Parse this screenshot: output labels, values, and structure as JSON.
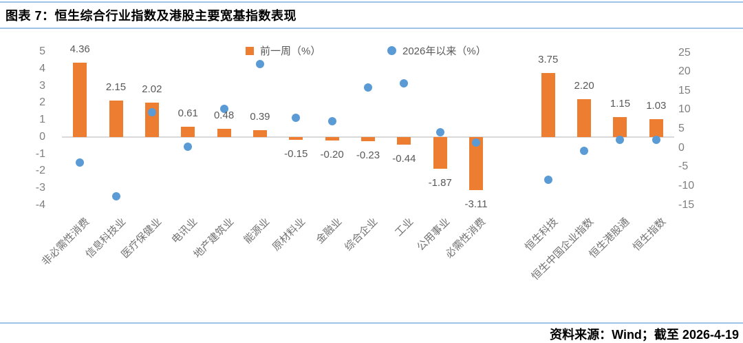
{
  "header": {
    "title": "图表 7：恒生综合行业指数及港股主要宽基指数表现"
  },
  "footer": {
    "source": "资料来源：Wind；截至 2026-4-19"
  },
  "colors": {
    "bar": "#ED7D31",
    "dot": "#5B9BD5",
    "accent_line": "#9DC3E6",
    "zero_line": "#D9D9D9",
    "axis_text": "#7F7F7F",
    "label_text": "#595959",
    "category_text": "#737373",
    "title_text": "#000000"
  },
  "chart_data": {
    "type": "bar+scatter",
    "title": "恒生综合行业指数及港股主要宽基指数表现",
    "legend": [
      {
        "label": "前一周（%）",
        "marker": "square",
        "color": "#ED7D31"
      },
      {
        "label": "2026年以来（%）",
        "marker": "circle",
        "color": "#5B9BD5"
      }
    ],
    "left_axis": {
      "min": -4,
      "max": 5,
      "ticks": [
        5,
        4,
        3,
        2,
        1,
        0,
        -1,
        -2,
        -3,
        -4
      ]
    },
    "right_axis": {
      "min": -15,
      "max": 25,
      "ticks": [
        25,
        20,
        15,
        10,
        5,
        0,
        -5,
        -10,
        -15
      ]
    },
    "total_slots": 17,
    "gap_slot": 12,
    "series": [
      {
        "name": "前一周（%）",
        "type": "bar",
        "axis": "left"
      },
      {
        "name": "2026年以来（%）",
        "type": "scatter",
        "axis": "right"
      }
    ],
    "points": [
      {
        "slot": 0,
        "category": "非必需性消费",
        "bar": 4.36,
        "bar_label": "4.36",
        "dot": -3.9
      },
      {
        "slot": 1,
        "category": "信息科技业",
        "bar": 2.15,
        "bar_label": "2.15",
        "dot": -12.6
      },
      {
        "slot": 2,
        "category": "医疗保健业",
        "bar": 2.02,
        "bar_label": "2.02",
        "dot": 9.4
      },
      {
        "slot": 3,
        "category": "电讯业",
        "bar": 0.61,
        "bar_label": "0.61",
        "dot": 0.4
      },
      {
        "slot": 4,
        "category": "地产建筑业",
        "bar": 0.48,
        "bar_label": "0.48",
        "dot": 10.3
      },
      {
        "slot": 5,
        "category": "能源业",
        "bar": 0.39,
        "bar_label": "0.39",
        "dot": 22.0
      },
      {
        "slot": 6,
        "category": "原材料业",
        "bar": -0.15,
        "bar_label": "-0.15",
        "dot": 7.9
      },
      {
        "slot": 7,
        "category": "金融业",
        "bar": -0.2,
        "bar_label": "-0.20",
        "dot": 7.0
      },
      {
        "slot": 8,
        "category": "综合企业",
        "bar": -0.23,
        "bar_label": "-0.23",
        "dot": 15.9
      },
      {
        "slot": 9,
        "category": "工业",
        "bar": -0.44,
        "bar_label": "-0.44",
        "dot": 17.0
      },
      {
        "slot": 10,
        "category": "公用事业",
        "bar": -1.87,
        "bar_label": "-1.87",
        "dot": 4.2
      },
      {
        "slot": 11,
        "category": "必需性消费",
        "bar": -3.11,
        "bar_label": "-3.11",
        "dot": 1.4
      },
      {
        "slot": 13,
        "category": "恒生科技",
        "bar": 3.75,
        "bar_label": "3.75",
        "dot": -8.3
      },
      {
        "slot": 14,
        "category": "恒生中国企业指数",
        "bar": 2.2,
        "bar_label": "2.20",
        "dot": -0.7
      },
      {
        "slot": 15,
        "category": "恒生港股通",
        "bar": 1.15,
        "bar_label": "1.15",
        "dot": 2.1
      },
      {
        "slot": 16,
        "category": "恒生指数",
        "bar": 1.03,
        "bar_label": "1.03",
        "dot": 2.1
      }
    ]
  }
}
